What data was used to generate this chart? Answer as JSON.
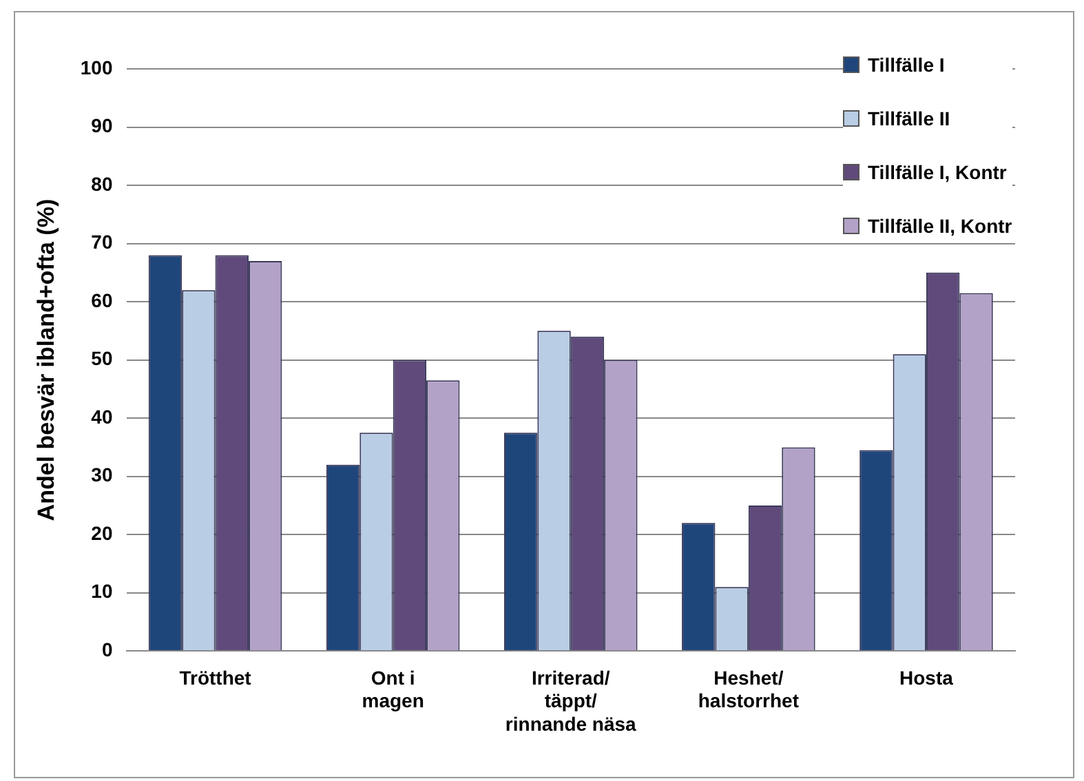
{
  "chart_data": {
    "type": "bar",
    "categories": [
      "Trötthet",
      "Ont i\nmagen",
      "Irriterad/\ntäppt/\nrinnande näsa",
      "Heshet/\nhalstorrhet",
      "Hosta"
    ],
    "ylabel": "Andel besvär ibland+ofta (%)",
    "series": [
      {
        "name": "Tillfälle I",
        "color": "#1f467b",
        "values": [
          68,
          32,
          37.5,
          22,
          34.5
        ]
      },
      {
        "name": "Tillfälle II",
        "color": "#b9cde5",
        "values": [
          62,
          37.5,
          55,
          11,
          51
        ]
      },
      {
        "name": "Tillfälle I, Kontr",
        "color": "#604a7b",
        "values": [
          68,
          50,
          54,
          25,
          65
        ]
      },
      {
        "name": "Tillfälle II, Kontr",
        "color": "#b3a2c7",
        "values": [
          67,
          46.5,
          50,
          35,
          61.5
        ]
      }
    ],
    "ylim": [
      0,
      100
    ],
    "yticks": [
      0,
      10,
      20,
      30,
      40,
      50,
      60,
      70,
      80,
      90,
      100
    ],
    "grid": "y",
    "legend": "top right"
  }
}
